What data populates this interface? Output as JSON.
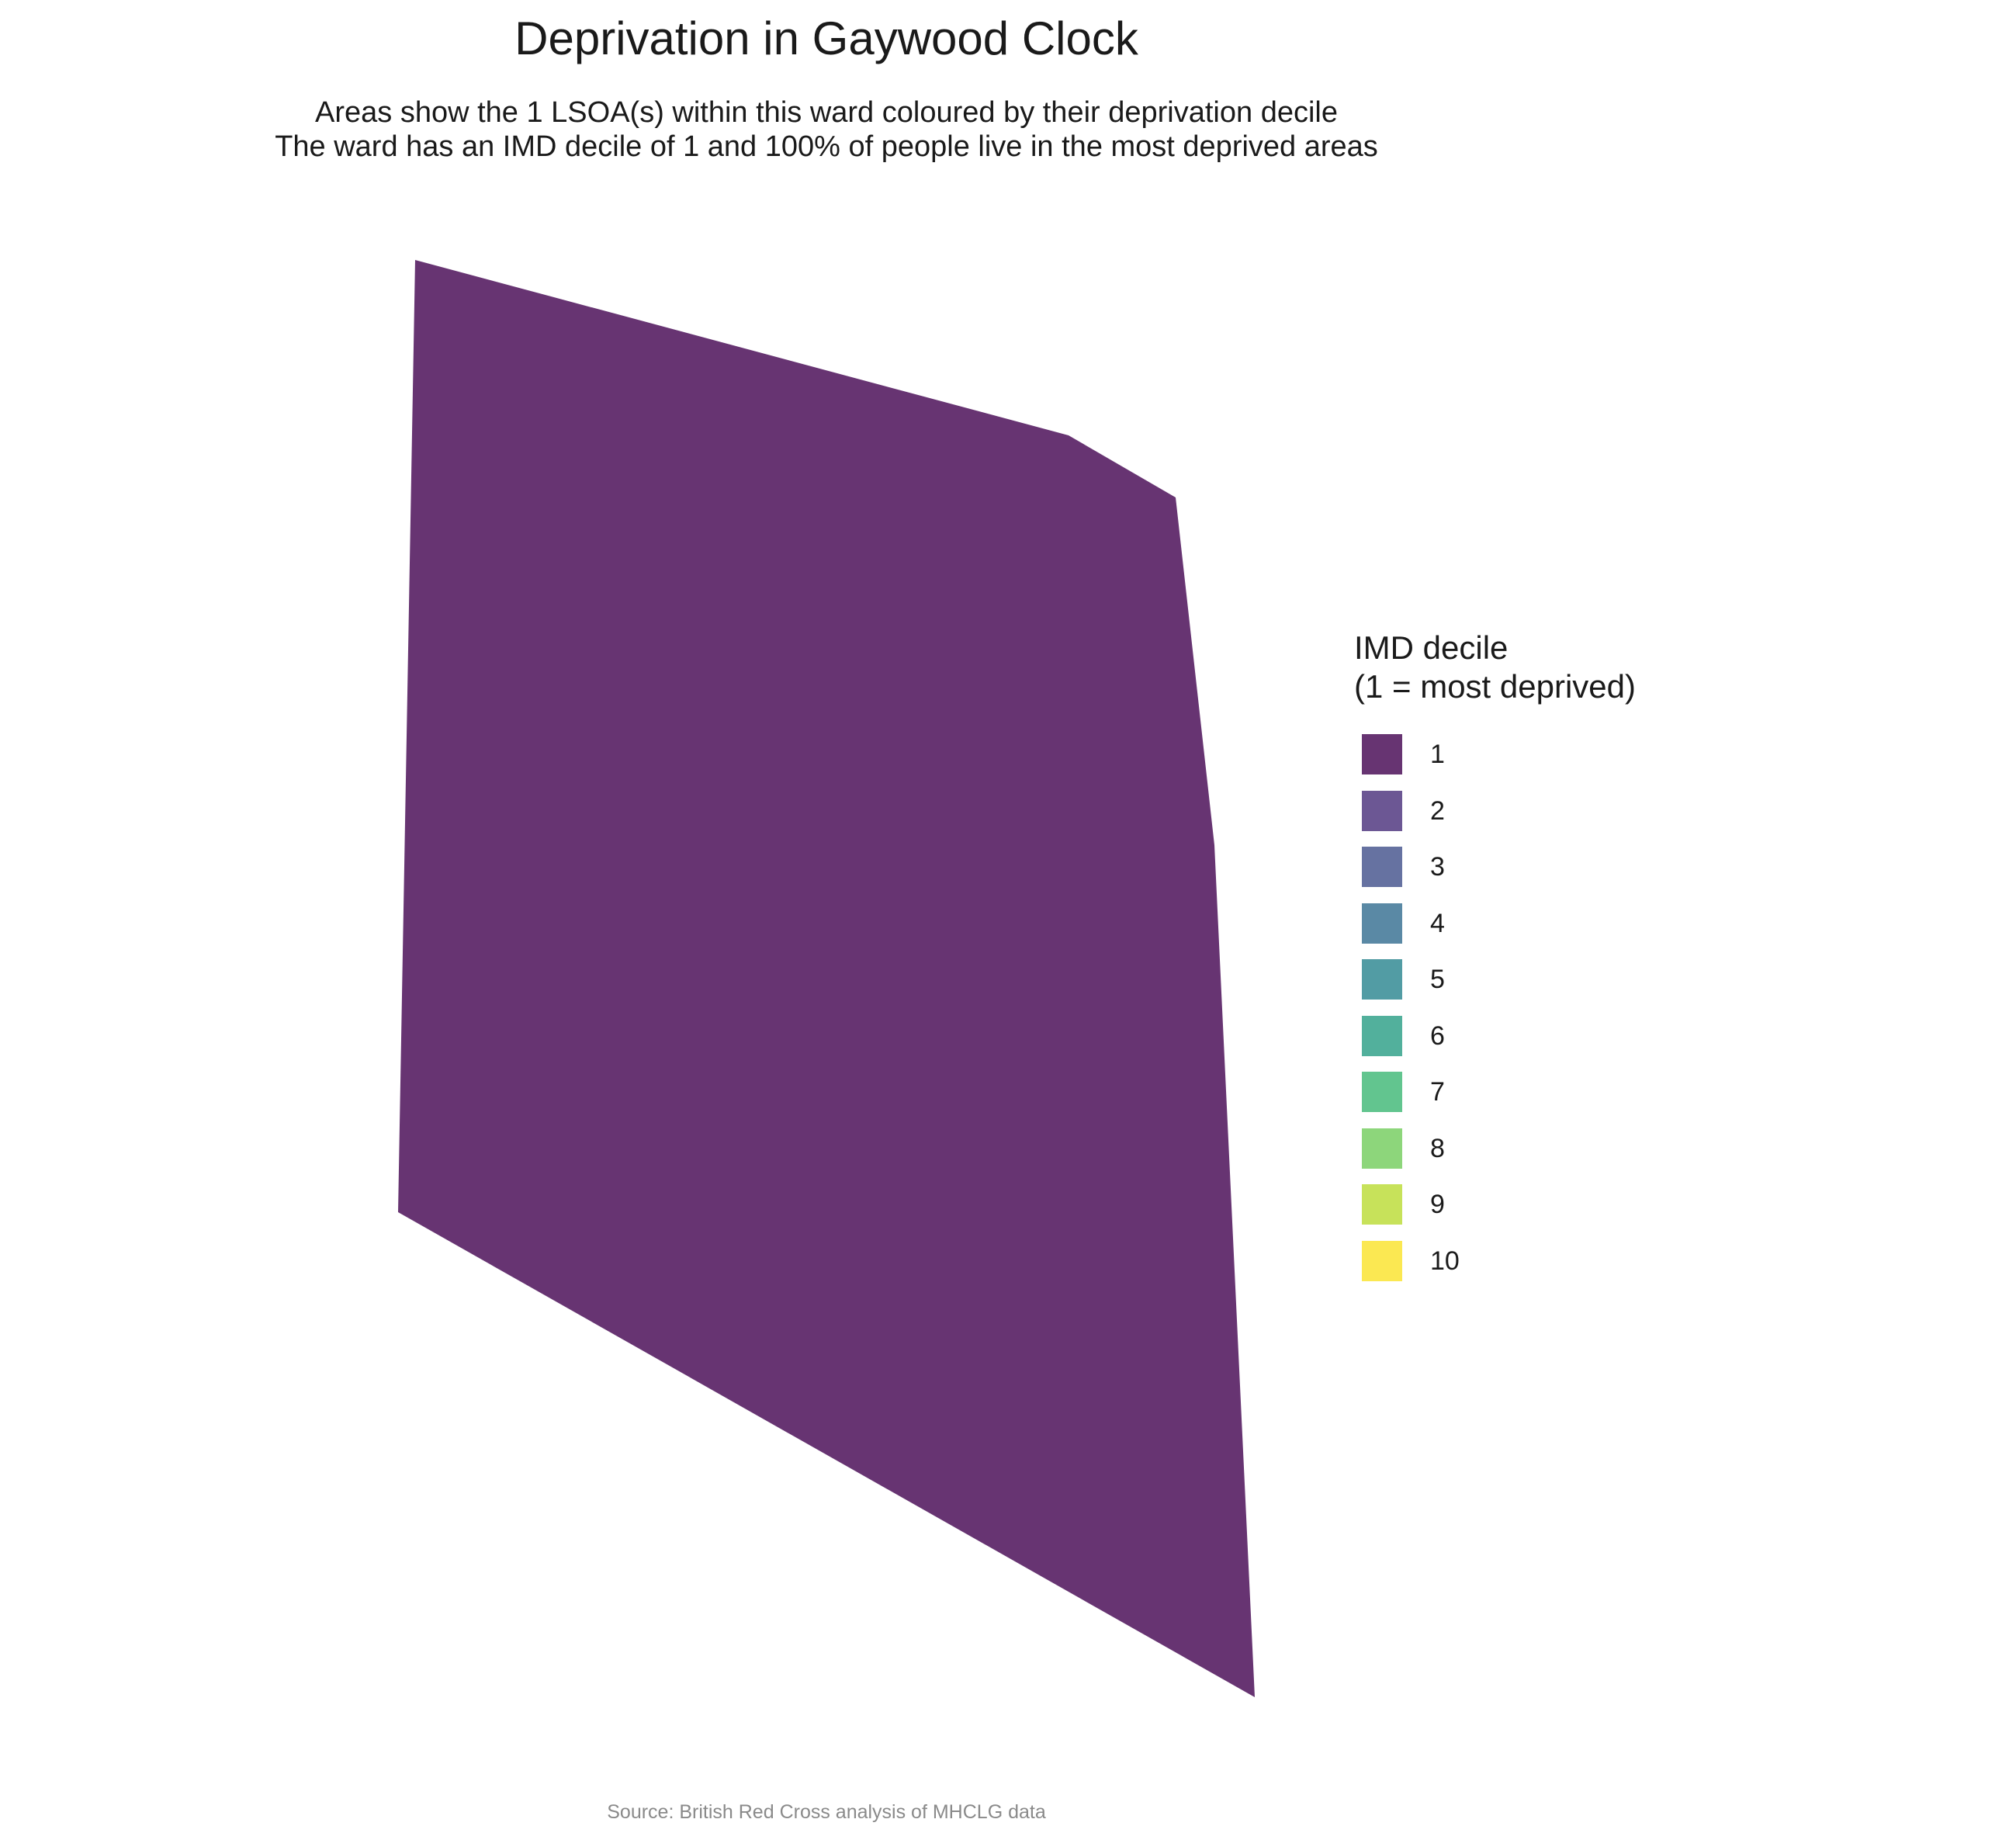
{
  "title": "Deprivation in Gaywood Clock",
  "subtitle_line1": "Areas show the 1 LSOA(s) within this ward coloured by their deprivation decile",
  "subtitle_line2": "The ward has an IMD decile of 1 and 100% of people live in the most deprived areas",
  "caption": "Source: British Red Cross analysis of MHCLG data",
  "map": {
    "areas": [
      {
        "name": "LSOA",
        "imd_decile": 1
      }
    ]
  },
  "legend": {
    "title_line1": "IMD decile",
    "title_line2": "(1 = most deprived)",
    "items": [
      {
        "label": "1",
        "color": "#673472"
      },
      {
        "label": "2",
        "color": "#6c5794"
      },
      {
        "label": "3",
        "color": "#6672a1"
      },
      {
        "label": "4",
        "color": "#5a89a5"
      },
      {
        "label": "5",
        "color": "#529ca4"
      },
      {
        "label": "6",
        "color": "#52b09c"
      },
      {
        "label": "7",
        "color": "#62c58f"
      },
      {
        "label": "8",
        "color": "#8dd67b"
      },
      {
        "label": "9",
        "color": "#c7e25a"
      },
      {
        "label": "10",
        "color": "#fbe852"
      }
    ]
  }
}
